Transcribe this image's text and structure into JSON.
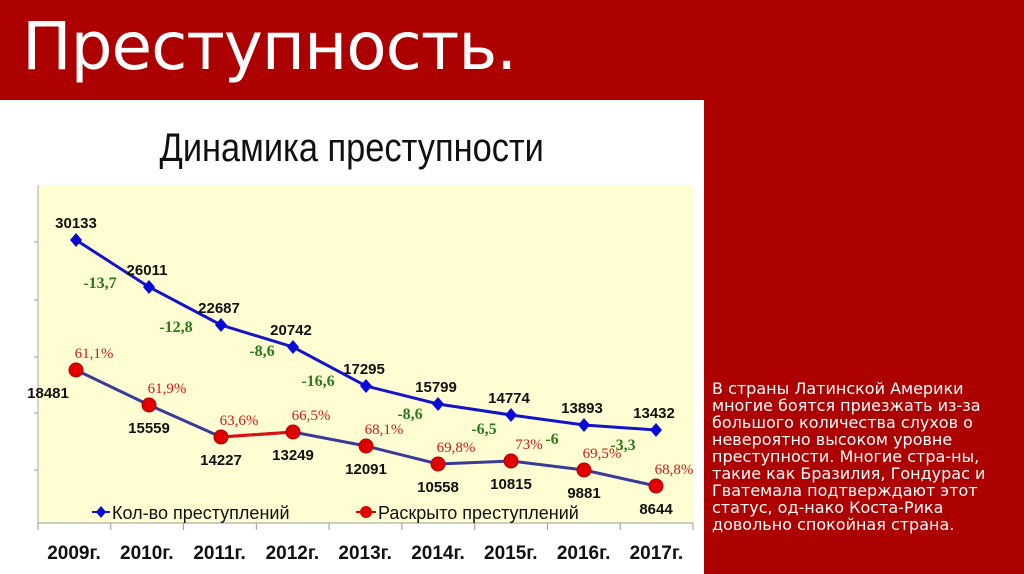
{
  "slide": {
    "title": "Преступность.",
    "side_text": "В страны Латинской Америки многие боятся приезжать из-за большого количества слухов о невероятно высоком уровне преступности. Многие стра-ны, такие как Бразилия, Гондурас и Гватемала подтверждают этот статус, од-нако Коста-Рика довольно спокойная страна.",
    "colors": {
      "background": "#ad0000",
      "panel": "#ffffff",
      "plot_bg": "#fffdd2"
    }
  },
  "chart_data": {
    "type": "line",
    "title": "Динамика преступности",
    "categories": [
      "2009г.",
      "2010г.",
      "2011г.",
      "2012г.",
      "2013г.",
      "2014г.",
      "2015г.",
      "2016г.",
      "2017г."
    ],
    "series": [
      {
        "name": "Кол-во преступлений",
        "color": "#0b0bd0",
        "marker": "diamond",
        "values": [
          30133,
          26011,
          22687,
          20742,
          17295,
          15799,
          14774,
          13893,
          13432
        ],
        "labels": [
          "30133",
          "26011",
          "22687",
          "20742",
          "17295",
          "15799",
          "14774",
          "13893",
          "13432"
        ]
      },
      {
        "name": "Раскрыто преступлений",
        "color": "#e00000",
        "line_color": "#3a3a9a",
        "marker": "circle",
        "values": [
          18481,
          15559,
          14227,
          13249,
          12091,
          10558,
          10815,
          9881,
          8644
        ],
        "labels": [
          "18481",
          "15559",
          "14227",
          "13249",
          "12091",
          "10558",
          "10815",
          "9881",
          "8644"
        ]
      }
    ],
    "annotations": {
      "change_pct": [
        "-13,7",
        "-12,8",
        "-8,6",
        "-16,6",
        "-8,6",
        "-6,5",
        "-6",
        "-3,3"
      ],
      "change_color": "#2a7a1a",
      "solved_pct": [
        "61,1%",
        "61,9%",
        "63,6%",
        "66,5%",
        "68,1%",
        "69,8%",
        "73%",
        "69,5%",
        "68,8%"
      ],
      "solved_color": "#cc1a1a"
    },
    "xlabel": "",
    "ylabel": "",
    "grid": false,
    "legend": [
      "Кол-во преступлений",
      "Раскрыто преступлений"
    ],
    "legend_position": "bottom-inside"
  }
}
